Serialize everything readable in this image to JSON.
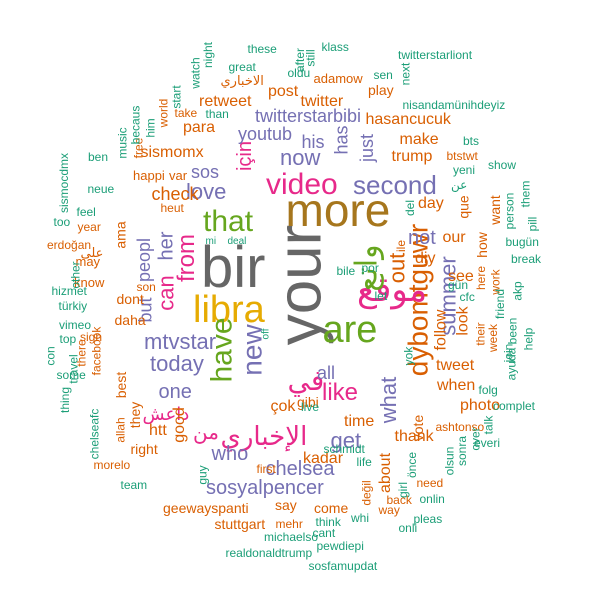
{
  "palette": {
    "teal": "#1b9e77",
    "orange": "#d95f02",
    "purple": "#7570b3",
    "pink": "#e7298a",
    "green": "#66a61e",
    "gold": "#a6761d"
  },
  "words": [
    {
      "text": "bir",
      "color": "#666666",
      "rot": 0
    },
    {
      "text": "your",
      "color": "#666666",
      "rot": -90
    },
    {
      "text": "more",
      "color": "#a6761d",
      "rot": 0
    },
    {
      "text": "are",
      "color": "#66a61e",
      "rot": 0
    },
    {
      "text": "libra",
      "color": "#e6ab02",
      "rot": 0
    },
    {
      "text": "dybomtguwr",
      "color": "#d95f02",
      "rot": -90
    },
    {
      "text": "موقع",
      "color": "#e7298a",
      "rot": 0
    },
    {
      "text": "واتع",
      "color": "#66a61e",
      "rot": -90
    },
    {
      "text": "have",
      "color": "#66a61e",
      "rot": -90
    },
    {
      "text": "new",
      "color": "#7570b3",
      "rot": -90
    },
    {
      "text": "that",
      "color": "#66a61e",
      "rot": 0
    },
    {
      "text": "video",
      "color": "#e7298a",
      "rot": 0
    },
    {
      "text": "second",
      "color": "#7570b3",
      "rot": 0
    },
    {
      "text": "like",
      "color": "#e7298a",
      "rot": 0
    },
    {
      "text": "في",
      "color": "#e7298a",
      "rot": 0
    },
    {
      "text": "الإخباري",
      "color": "#e7298a",
      "rot": 0
    },
    {
      "text": "from",
      "color": "#e7298a",
      "rot": -90
    },
    {
      "text": "mtvstar",
      "color": "#7570b3",
      "rot": 0
    },
    {
      "text": "today",
      "color": "#7570b3",
      "rot": 0
    },
    {
      "text": "can",
      "color": "#e7298a",
      "rot": -90
    },
    {
      "text": "her",
      "color": "#7570b3",
      "rot": -90
    },
    {
      "text": "now",
      "color": "#7570b3",
      "rot": 0
    },
    {
      "text": "summer",
      "color": "#7570b3",
      "rot": -90
    },
    {
      "text": "out",
      "color": "#d95f02",
      "rot": -90
    },
    {
      "text": "love",
      "color": "#7570b3",
      "rot": 0
    },
    {
      "text": "için",
      "color": "#e7298a",
      "rot": -90
    },
    {
      "text": "sos",
      "color": "#7570b3",
      "rot": 0
    },
    {
      "text": "what",
      "color": "#7570b3",
      "rot": -90
    },
    {
      "text": "get",
      "color": "#7570b3",
      "rot": 0
    },
    {
      "text": "chelsea",
      "color": "#7570b3",
      "rot": 0
    },
    {
      "text": "sosyalpencer",
      "color": "#7570b3",
      "rot": 0
    },
    {
      "text": "who",
      "color": "#7570b3",
      "rot": 0
    },
    {
      "text": "one",
      "color": "#7570b3",
      "rot": 0
    },
    {
      "text": "all",
      "color": "#7570b3",
      "rot": 0
    },
    {
      "text": "not",
      "color": "#7570b3",
      "rot": 0
    },
    {
      "text": "twitterstarbibi",
      "color": "#7570b3",
      "rot": 0
    },
    {
      "text": "youtub",
      "color": "#7570b3",
      "rot": 0
    },
    {
      "text": "his",
      "color": "#7570b3",
      "rot": 0
    },
    {
      "text": "has",
      "color": "#7570b3",
      "rot": -90
    },
    {
      "text": "just",
      "color": "#7570b3",
      "rot": -90
    },
    {
      "text": "من",
      "color": "#e7298a",
      "rot": 0
    },
    {
      "text": "داعش",
      "color": "#e7298a",
      "rot": 0
    },
    {
      "text": "but",
      "color": "#7570b3",
      "rot": -90
    },
    {
      "text": "peopl",
      "color": "#7570b3",
      "rot": -90
    },
    {
      "text": "check",
      "color": "#d95f02",
      "rot": 0
    },
    {
      "text": "sismomx",
      "color": "#d95f02",
      "rot": 0
    },
    {
      "text": "para",
      "color": "#d95f02",
      "rot": 0
    },
    {
      "text": "twitter",
      "color": "#d95f02",
      "rot": 0
    },
    {
      "text": "post",
      "color": "#d95f02",
      "rot": 0
    },
    {
      "text": "retweet",
      "color": "#d95f02",
      "rot": 0
    },
    {
      "text": "hasancucuk",
      "color": "#d95f02",
      "rot": 0
    },
    {
      "text": "make",
      "color": "#d95f02",
      "rot": 0
    },
    {
      "text": "trump",
      "color": "#d95f02",
      "rot": 0
    },
    {
      "text": "day",
      "color": "#d95f02",
      "rot": 0
    },
    {
      "text": "our",
      "color": "#d95f02",
      "rot": 0
    },
    {
      "text": "diy",
      "color": "#d95f02",
      "rot": 0
    },
    {
      "text": "see",
      "color": "#d95f02",
      "rot": 0
    },
    {
      "text": "look",
      "color": "#d95f02",
      "rot": -90
    },
    {
      "text": "follow",
      "color": "#d95f02",
      "rot": -90
    },
    {
      "text": "tweet",
      "color": "#d95f02",
      "rot": 0
    },
    {
      "text": "when",
      "color": "#d95f02",
      "rot": 0
    },
    {
      "text": "vote",
      "color": "#d95f02",
      "rot": -90
    },
    {
      "text": "photo",
      "color": "#d95f02",
      "rot": 0
    },
    {
      "text": "thank",
      "color": "#d95f02",
      "rot": 0
    },
    {
      "text": "about",
      "color": "#d95f02",
      "rot": -90
    },
    {
      "text": "time",
      "color": "#d95f02",
      "rot": 0
    },
    {
      "text": "kadar",
      "color": "#d95f02",
      "rot": 0
    },
    {
      "text": "say",
      "color": "#d95f02",
      "rot": 0
    },
    {
      "text": "come",
      "color": "#d95f02",
      "rot": 0
    },
    {
      "text": "geewayspanti",
      "color": "#d95f02",
      "rot": 0
    },
    {
      "text": "stuttgart",
      "color": "#d95f02",
      "rot": 0
    },
    {
      "text": "good",
      "color": "#d95f02",
      "rot": -90
    },
    {
      "text": "htt",
      "color": "#d95f02",
      "rot": 0
    },
    {
      "text": "right",
      "color": "#d95f02",
      "rot": 0
    },
    {
      "text": "best",
      "color": "#d95f02",
      "rot": -90
    },
    {
      "text": "they",
      "color": "#d95f02",
      "rot": -90
    },
    {
      "text": "dont",
      "color": "#d95f02",
      "rot": 0
    },
    {
      "text": "daha",
      "color": "#d95f02",
      "rot": 0
    },
    {
      "text": "ama",
      "color": "#d95f02",
      "rot": -90
    },
    {
      "text": "çok",
      "color": "#d95f02",
      "rot": 0
    },
    {
      "text": "gibi",
      "color": "#d95f02",
      "rot": 0
    },
    {
      "text": "que",
      "color": "#d95f02",
      "rot": -90
    },
    {
      "text": "how",
      "color": "#d95f02",
      "rot": -90
    },
    {
      "text": "want",
      "color": "#d95f02",
      "rot": -90
    },
    {
      "text": "play",
      "color": "#d95f02",
      "rot": 0
    },
    {
      "text": "adamow",
      "color": "#d95f02",
      "rot": 0
    },
    {
      "text": "الاخباري",
      "color": "#d95f02",
      "rot": 0
    },
    {
      "text": "free",
      "color": "#d95f02",
      "rot": -90
    },
    {
      "text": "happi",
      "color": "#d95f02",
      "rot": 0
    },
    {
      "text": "var",
      "color": "#d95f02",
      "rot": 0
    },
    {
      "text": "year",
      "color": "#d95f02",
      "rot": 0
    },
    {
      "text": "may",
      "color": "#d95f02",
      "rot": 0
    },
    {
      "text": "know",
      "color": "#d95f02",
      "rot": 0
    },
    {
      "text": "على",
      "color": "#d95f02",
      "rot": 0
    },
    {
      "text": "erdoğan",
      "color": "#d95f02",
      "rot": 0
    },
    {
      "text": "facebook",
      "color": "#d95f02",
      "rot": -90
    },
    {
      "text": "there",
      "color": "#d95f02",
      "rot": -90
    },
    {
      "text": "sign",
      "color": "#d95f02",
      "rot": 0
    },
    {
      "text": "world",
      "color": "#d95f02",
      "rot": -90
    },
    {
      "text": "take",
      "color": "#d95f02",
      "rot": 0
    },
    {
      "text": "allah",
      "color": "#d95f02",
      "rot": -90
    },
    {
      "text": "morelo",
      "color": "#d95f02",
      "rot": 0
    },
    {
      "text": "ashtonso",
      "color": "#d95f02",
      "rot": 0
    },
    {
      "text": "need",
      "color": "#d95f02",
      "rot": 0
    },
    {
      "text": "back",
      "color": "#d95f02",
      "rot": 0
    },
    {
      "text": "way",
      "color": "#d95f02",
      "rot": 0
    },
    {
      "text": "btstwt",
      "color": "#d95f02",
      "rot": 0
    },
    {
      "text": "here",
      "color": "#d95f02",
      "rot": -90
    },
    {
      "text": "work",
      "color": "#d95f02",
      "rot": -90
    },
    {
      "text": "their",
      "color": "#d95f02",
      "rot": -90
    },
    {
      "text": "week",
      "color": "#d95f02",
      "rot": -90
    },
    {
      "text": "mehr",
      "color": "#d95f02",
      "rot": 0
    },
    {
      "text": "first",
      "color": "#d95f02",
      "rot": 0
    },
    {
      "text": "son",
      "color": "#d95f02",
      "rot": 0
    },
    {
      "text": "heut",
      "color": "#d95f02",
      "rot": 0
    },
    {
      "text": "değil",
      "color": "#d95f02",
      "rot": -90
    },
    {
      "text": "ile",
      "color": "#d95f02",
      "rot": -90
    },
    {
      "text": "them",
      "color": "#1b9e77",
      "rot": -90
    },
    {
      "text": "nisandamünihdeyiz",
      "color": "#1b9e77",
      "rot": 0
    },
    {
      "text": "twitterstarliont",
      "color": "#1b9e77",
      "rot": 0
    },
    {
      "text": "klass",
      "color": "#1b9e77",
      "rot": 0
    },
    {
      "text": "these",
      "color": "#1b9e77",
      "rot": 0
    },
    {
      "text": "great",
      "color": "#1b9e77",
      "rot": 0
    },
    {
      "text": "oldu",
      "color": "#1b9e77",
      "rot": 0
    },
    {
      "text": "sen",
      "color": "#1b9e77",
      "rot": 0
    },
    {
      "text": "next",
      "color": "#1b9e77",
      "rot": -90
    },
    {
      "text": "watch",
      "color": "#1b9e77",
      "rot": -90
    },
    {
      "text": "night",
      "color": "#1b9e77",
      "rot": -90
    },
    {
      "text": "after",
      "color": "#1b9e77",
      "rot": -90
    },
    {
      "text": "still",
      "color": "#1b9e77",
      "rot": -90
    },
    {
      "text": "start",
      "color": "#1b9e77",
      "rot": -90
    },
    {
      "text": "than",
      "color": "#1b9e77",
      "rot": 0
    },
    {
      "text": "becaus",
      "color": "#1b9e77",
      "rot": -90
    },
    {
      "text": "music",
      "color": "#1b9e77",
      "rot": -90
    },
    {
      "text": "him",
      "color": "#1b9e77",
      "rot": -90
    },
    {
      "text": "ben",
      "color": "#1b9e77",
      "rot": 0
    },
    {
      "text": "sismocdmx",
      "color": "#1b9e77",
      "rot": -90
    },
    {
      "text": "neue",
      "color": "#1b9e77",
      "rot": 0
    },
    {
      "text": "feel",
      "color": "#1b9e77",
      "rot": 0
    },
    {
      "text": "too",
      "color": "#1b9e77",
      "rot": 0
    },
    {
      "text": "other",
      "color": "#1b9e77",
      "rot": -90
    },
    {
      "text": "türkiy",
      "color": "#1b9e77",
      "rot": 0
    },
    {
      "text": "hizmet",
      "color": "#1b9e77",
      "rot": 0
    },
    {
      "text": "vimeo",
      "color": "#1b9e77",
      "rot": 0
    },
    {
      "text": "top",
      "color": "#1b9e77",
      "rot": 0
    },
    {
      "text": "con",
      "color": "#1b9e77",
      "rot": -90
    },
    {
      "text": "some",
      "color": "#1b9e77",
      "rot": 0
    },
    {
      "text": "travel",
      "color": "#1b9e77",
      "rot": -90
    },
    {
      "text": "thing",
      "color": "#1b9e77",
      "rot": -90
    },
    {
      "text": "chelseafc",
      "color": "#1b9e77",
      "rot": -90
    },
    {
      "text": "team",
      "color": "#1b9e77",
      "rot": 0
    },
    {
      "text": "realdonaldtrump",
      "color": "#1b9e77",
      "rot": 0
    },
    {
      "text": "michaelso",
      "color": "#1b9e77",
      "rot": 0
    },
    {
      "text": "pewdiepi",
      "color": "#1b9e77",
      "rot": 0
    },
    {
      "text": "sosfamupdat",
      "color": "#1b9e77",
      "rot": 0
    },
    {
      "text": "cant",
      "color": "#1b9e77",
      "rot": 0
    },
    {
      "text": "think",
      "color": "#1b9e77",
      "rot": 0
    },
    {
      "text": "whi",
      "color": "#1b9e77",
      "rot": 0
    },
    {
      "text": "onli",
      "color": "#1b9e77",
      "rot": 0
    },
    {
      "text": "pleas",
      "color": "#1b9e77",
      "rot": 0
    },
    {
      "text": "onlin",
      "color": "#1b9e77",
      "rot": 0
    },
    {
      "text": "everi",
      "color": "#1b9e77",
      "rot": 0
    },
    {
      "text": "olsun",
      "color": "#1b9e77",
      "rot": -90
    },
    {
      "text": "sonra",
      "color": "#1b9e77",
      "rot": -90
    },
    {
      "text": "over",
      "color": "#1b9e77",
      "rot": -90
    },
    {
      "text": "talk",
      "color": "#1b9e77",
      "rot": -90
    },
    {
      "text": "girl",
      "color": "#1b9e77",
      "rot": -90
    },
    {
      "text": "complet",
      "color": "#1b9e77",
      "rot": 0
    },
    {
      "text": "ayuda",
      "color": "#1b9e77",
      "rot": -90
    },
    {
      "text": "help",
      "color": "#1b9e77",
      "rot": -90
    },
    {
      "text": "been",
      "color": "#1b9e77",
      "rot": -90
    },
    {
      "text": "join",
      "color": "#1b9e77",
      "rot": -90
    },
    {
      "text": "akp",
      "color": "#1b9e77",
      "rot": -90
    },
    {
      "text": "break",
      "color": "#1b9e77",
      "rot": 0
    },
    {
      "text": "bugün",
      "color": "#1b9e77",
      "rot": 0
    },
    {
      "text": "pill",
      "color": "#1b9e77",
      "rot": -90
    },
    {
      "text": "friend",
      "color": "#1b9e77",
      "rot": -90
    },
    {
      "text": "person",
      "color": "#1b9e77",
      "rot": -90
    },
    {
      "text": "show",
      "color": "#1b9e77",
      "rot": 0
    },
    {
      "text": "bts",
      "color": "#1b9e77",
      "rot": 0
    },
    {
      "text": "yeni",
      "color": "#1b9e77",
      "rot": 0
    },
    {
      "text": "عن",
      "color": "#1b9e77",
      "rot": 0
    },
    {
      "text": "del",
      "color": "#1b9e77",
      "rot": -90
    },
    {
      "text": "gün",
      "color": "#1b9e77",
      "rot": 0
    },
    {
      "text": "cfc",
      "color": "#1b9e77",
      "rot": 0
    },
    {
      "text": "live",
      "color": "#1b9e77",
      "rot": 0
    },
    {
      "text": "folg",
      "color": "#1b9e77",
      "rot": 0
    },
    {
      "text": "önce",
      "color": "#1b9e77",
      "rot": -90
    },
    {
      "text": "life",
      "color": "#1b9e77",
      "rot": 0
    },
    {
      "text": "guy",
      "color": "#1b9e77",
      "rot": -90
    },
    {
      "text": "schmidt",
      "color": "#1b9e77",
      "rot": 0
    },
    {
      "text": "yok",
      "color": "#1b9e77",
      "rot": -90
    },
    {
      "text": "let",
      "color": "#1b9e77",
      "rot": 0
    },
    {
      "text": "bile",
      "color": "#1b9e77",
      "rot": 0
    },
    {
      "text": "por",
      "color": "#1b9e77",
      "rot": 0
    },
    {
      "text": "mi",
      "color": "#1b9e77",
      "rot": 0
    },
    {
      "text": "deal",
      "color": "#1b9e77",
      "rot": 0
    },
    {
      "text": "off",
      "color": "#1b9e77",
      "rot": -90
    }
  ]
}
